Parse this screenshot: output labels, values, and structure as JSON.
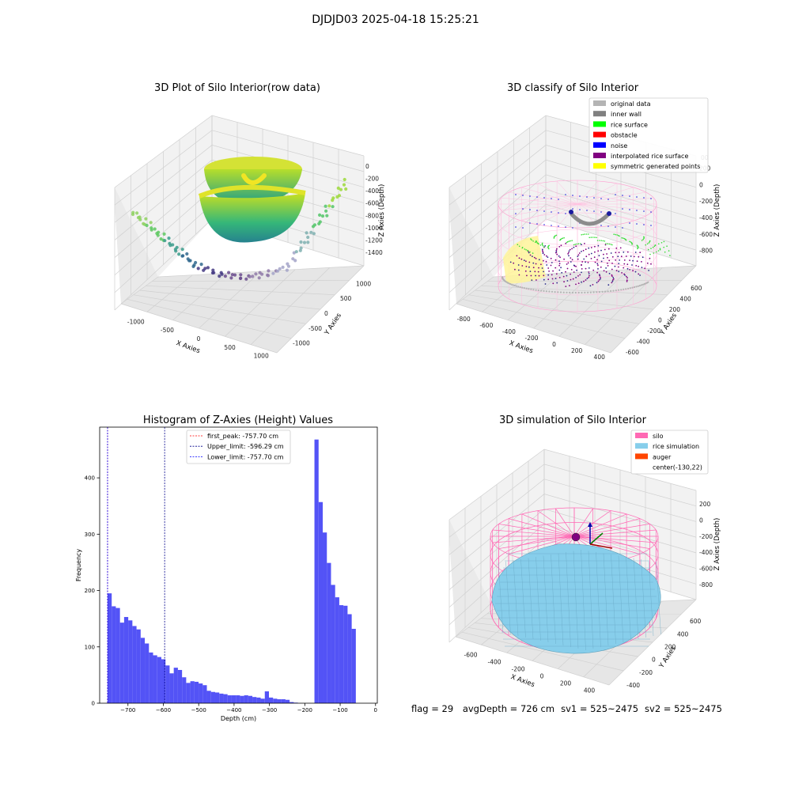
{
  "figure": {
    "suptitle": "DJDJD03 2025-04-18 15:25:21",
    "status": {
      "flag": "flag = 29",
      "avg_depth": "avgDepth = 726 cm",
      "sv1": "sv1 = 525~2475",
      "sv2": "sv2 = 525~2475"
    }
  },
  "chart_data": [
    {
      "type": "scatter3d",
      "title": "3D Plot of Silo Interior(row data)",
      "xlabel": "X Axies",
      "ylabel": "Y Axies",
      "zlabel": "Z Axies (Depth)",
      "xticks": [
        "-1000",
        "-500",
        "0",
        "500",
        "1000"
      ],
      "yticks": [
        "-1000",
        "-500",
        "0",
        "500",
        "1000"
      ],
      "zticks": [
        "0",
        "-200",
        "-400",
        "-600",
        "-800",
        "-1000",
        "-1200",
        "-1400"
      ],
      "colormap": "viridis"
    },
    {
      "type": "scatter3d",
      "title": "3D classify of Silo Interior",
      "xlabel": "X Axies",
      "ylabel": "Y Axies",
      "zlabel": "Z Axies (Depth)",
      "xticks": [
        "-800",
        "-600",
        "-400",
        "-200",
        "0",
        "200",
        "400"
      ],
      "yticks": [
        "-600",
        "-400",
        "-200",
        "0",
        "200",
        "400",
        "600"
      ],
      "zticks": [
        "200",
        "0",
        "-200",
        "-400",
        "-600",
        "-800"
      ],
      "ztick_partial": "00",
      "legend": [
        {
          "label": "original data",
          "color": "#b4b4b4"
        },
        {
          "label": "inner wall",
          "color": "#808080"
        },
        {
          "label": "rice surface",
          "color": "#00ff00"
        },
        {
          "label": "obstacle",
          "color": "#ff0000"
        },
        {
          "label": "noise",
          "color": "#0000ff"
        },
        {
          "label": "interpolated rice surface",
          "color": "#800080"
        },
        {
          "label": "symmetric generated points",
          "color": "#ffff00"
        }
      ]
    },
    {
      "type": "bar",
      "title": "Histogram of Z-Axies (Height) Values",
      "xlabel": "Depth (cm)",
      "ylabel": "Frequency",
      "xlim": [
        -780,
        5
      ],
      "ylim": [
        0,
        490
      ],
      "xticks": [
        -700,
        -600,
        -500,
        -400,
        -300,
        -200,
        -100,
        0
      ],
      "yticks": [
        0,
        100,
        200,
        300,
        400
      ],
      "bin_width": 11.7,
      "bins": [
        [
          -757.7,
          195
        ],
        [
          -746,
          172
        ],
        [
          -734.3,
          169
        ],
        [
          -722.6,
          143
        ],
        [
          -710.9,
          153
        ],
        [
          -699.2,
          147
        ],
        [
          -687.5,
          137
        ],
        [
          -675.8,
          131
        ],
        [
          -664.1,
          116
        ],
        [
          -652.4,
          106
        ],
        [
          -640.7,
          90
        ],
        [
          -629,
          85
        ],
        [
          -617.3,
          82
        ],
        [
          -605.6,
          78
        ],
        [
          -593.9,
          67
        ],
        [
          -582.2,
          53
        ],
        [
          -570.5,
          63
        ],
        [
          -558.8,
          59
        ],
        [
          -547.1,
          46
        ],
        [
          -535.4,
          36
        ],
        [
          -523.7,
          39
        ],
        [
          -512,
          38
        ],
        [
          -500.3,
          35
        ],
        [
          -488.6,
          32
        ],
        [
          -476.9,
          22
        ],
        [
          -465.2,
          20
        ],
        [
          -453.5,
          19
        ],
        [
          -441.8,
          17
        ],
        [
          -430.1,
          16
        ],
        [
          -418.4,
          14
        ],
        [
          -406.7,
          14
        ],
        [
          -395,
          14
        ],
        [
          -383.3,
          13
        ],
        [
          -371.6,
          14
        ],
        [
          -359.9,
          13
        ],
        [
          -348.2,
          11
        ],
        [
          -336.5,
          10
        ],
        [
          -324.8,
          8
        ],
        [
          -313.1,
          21
        ],
        [
          -301.4,
          10
        ],
        [
          -289.7,
          8
        ],
        [
          -278,
          7
        ],
        [
          -266.3,
          7
        ],
        [
          -254.6,
          6
        ],
        [
          -242.9,
          2
        ],
        [
          -231.2,
          1
        ],
        [
          -219.5,
          0
        ],
        [
          -207.8,
          0
        ],
        [
          -196.1,
          0
        ],
        [
          -184.4,
          0
        ],
        [
          -172.7,
          468
        ],
        [
          -161,
          357
        ],
        [
          -149.3,
          303
        ],
        [
          -137.6,
          249
        ],
        [
          -125.9,
          210
        ],
        [
          -114.2,
          188
        ],
        [
          -102.5,
          174
        ],
        [
          -90.8,
          173
        ],
        [
          -79.1,
          158
        ],
        [
          -67.4,
          132
        ]
      ],
      "bar_color": "#4a4af5",
      "vlines": [
        {
          "label": "first_peak: -757.70 cm",
          "x": -757.7,
          "color": "#ff0000"
        },
        {
          "label": "Upper_limit: -596.29 cm",
          "x": -596.29,
          "color": "#00008b"
        },
        {
          "label": "Lower_limit: -757.70 cm",
          "x": -757.7,
          "color": "#0000ff"
        }
      ]
    },
    {
      "type": "surface3d",
      "title": "3D simulation of Silo Interior",
      "xlabel": "X Axies",
      "ylabel": "Y Axies",
      "zlabel": "Z Axies (Depth)",
      "xticks": [
        "-600",
        "-400",
        "-200",
        "0",
        "200",
        "400"
      ],
      "yticks": [
        "-400",
        "-200",
        "0",
        "200",
        "400",
        "600"
      ],
      "zticks": [
        "200",
        "0",
        "-200",
        "-400",
        "-600",
        "-800"
      ],
      "legend": [
        {
          "label": "silo",
          "color": "#ff69b4"
        },
        {
          "label": "rice simulation",
          "color": "#87ceeb"
        },
        {
          "label": "auger",
          "color": "#ff4500"
        },
        {
          "label": "center(-130,22)",
          "color": ""
        }
      ]
    }
  ]
}
